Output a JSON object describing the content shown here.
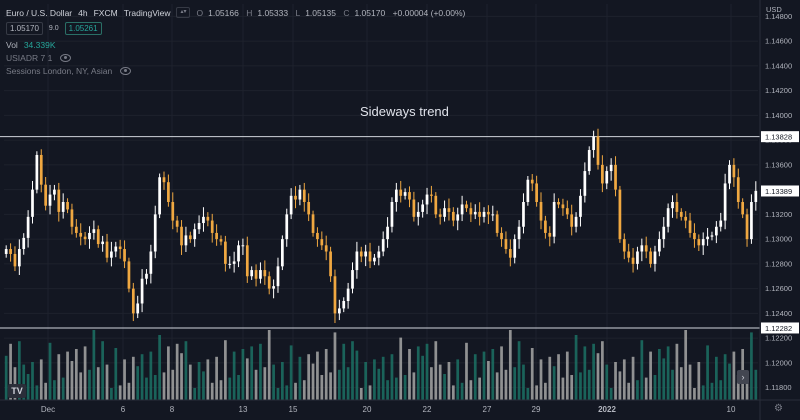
{
  "header": {
    "symbol_name": "Euro / U.S. Dollar",
    "interval": "4h",
    "exchange": "FXCM",
    "source": "TradingView",
    "ohlc": {
      "open_label": "O",
      "open": "1.05166",
      "high_label": "H",
      "high": "1.05333",
      "low_label": "L",
      "low": "1.05135",
      "close_label": "C",
      "close": "1.05170",
      "change": "+0.00004 (+0.00%)"
    },
    "sell_price": "1.05170",
    "spread": "9.0",
    "buy_price": "1.05261",
    "volume_label": "Vol",
    "volume_value": "34.339K",
    "indicator": "USIADR 7 1",
    "sessions": "Sessions London, NY, Asian"
  },
  "annotation": "Sideways trend",
  "axis": {
    "currency": "USD",
    "price_ticks": [
      "1.14800",
      "1.14600",
      "1.14400",
      "1.14200",
      "1.14000",
      "1.13800",
      "1.13600",
      "1.13400",
      "1.13200",
      "1.13000",
      "1.12800",
      "1.12600",
      "1.12400",
      "1.12200",
      "1.12000",
      "1.11800"
    ],
    "date_ticks": [
      "Dec",
      "6",
      "8",
      "13",
      "15",
      "20",
      "22",
      "27",
      "29",
      "2022",
      "10"
    ]
  },
  "markers": {
    "resistance": "1.13828",
    "support": "1.12282",
    "last_price": "1.13389"
  },
  "colors": {
    "background": "#131722",
    "bull_candle": "#ffffff",
    "bear_candle": "#f0a841",
    "volume_up": "#1c6c61",
    "volume_down": "#9e9e9e",
    "level_line": "#d1d4dc"
  },
  "icons": {
    "logo": "tradingview-logo-icon",
    "settings": "gear-icon",
    "scroll": "scroll-right-icon",
    "visibility": "eye-icon"
  },
  "chart_data": {
    "type": "candlestick",
    "title": "Sideways trend",
    "symbol": "Euro / U.S. Dollar",
    "interval": "4h",
    "ylim": [
      1.117,
      1.149
    ],
    "y_ticks": [
      1.148,
      1.146,
      1.144,
      1.142,
      1.14,
      1.138,
      1.136,
      1.134,
      1.132,
      1.13,
      1.128,
      1.126,
      1.124,
      1.122,
      1.12,
      1.118
    ],
    "x_ticks": [
      "Dec",
      "6",
      "8",
      "13",
      "15",
      "20",
      "22",
      "27",
      "29",
      "2022",
      "10"
    ],
    "horizontal_levels": [
      1.13828,
      1.12282
    ],
    "last_price": 1.13389,
    "closes": [
      1.1292,
      1.1288,
      1.1278,
      1.1292,
      1.1301,
      1.1318,
      1.134,
      1.1368,
      1.1344,
      1.1327,
      1.1336,
      1.134,
      1.1322,
      1.133,
      1.1324,
      1.131,
      1.1305,
      1.1302,
      1.13,
      1.1305,
      1.1308,
      1.1296,
      1.1298,
      1.1285,
      1.129,
      1.1294,
      1.1292,
      1.1282,
      1.126,
      1.124,
      1.1248,
      1.1268,
      1.1272,
      1.129,
      1.132,
      1.135,
      1.1346,
      1.133,
      1.1315,
      1.131,
      1.1295,
      1.1303,
      1.13,
      1.1308,
      1.1313,
      1.1318,
      1.1315,
      1.1305,
      1.13,
      1.1298,
      1.128,
      1.128,
      1.1282,
      1.1295,
      1.1295,
      1.127,
      1.1275,
      1.1268,
      1.1275,
      1.127,
      1.126,
      1.1262,
      1.1278,
      1.13,
      1.132,
      1.1335,
      1.1332,
      1.134,
      1.133,
      1.132,
      1.1305,
      1.13,
      1.1295,
      1.129,
      1.127,
      1.124,
      1.1244,
      1.125,
      1.126,
      1.1275,
      1.129,
      1.1286,
      1.129,
      1.1282,
      1.1285,
      1.129,
      1.13,
      1.131,
      1.133,
      1.134,
      1.1335,
      1.1338,
      1.1332,
      1.1318,
      1.1322,
      1.1328,
      1.1336,
      1.1335,
      1.132,
      1.1318,
      1.1325,
      1.1322,
      1.1315,
      1.132,
      1.1328,
      1.1325,
      1.132,
      1.1322,
      1.1318,
      1.1322,
      1.132,
      1.132,
      1.1305,
      1.13,
      1.1292,
      1.1285,
      1.13,
      1.131,
      1.133,
      1.1348,
      1.1345,
      1.133,
      1.1315,
      1.1305,
      1.1302,
      1.133,
      1.1328,
      1.1325,
      1.132,
      1.131,
      1.1318,
      1.1335,
      1.1355,
      1.1372,
      1.1383,
      1.136,
      1.1345,
      1.1355,
      1.136,
      1.134,
      1.13,
      1.129,
      1.1285,
      1.128,
      1.129,
      1.1295,
      1.129,
      1.128,
      1.129,
      1.13,
      1.131,
      1.1325,
      1.133,
      1.1322,
      1.1318,
      1.1315,
      1.1305,
      1.13,
      1.1295,
      1.13,
      1.1302,
      1.1303,
      1.131,
      1.1315,
      1.1345,
      1.136,
      1.135,
      1.133,
      1.132,
      1.13,
      1.133,
      1.1339
    ]
  }
}
